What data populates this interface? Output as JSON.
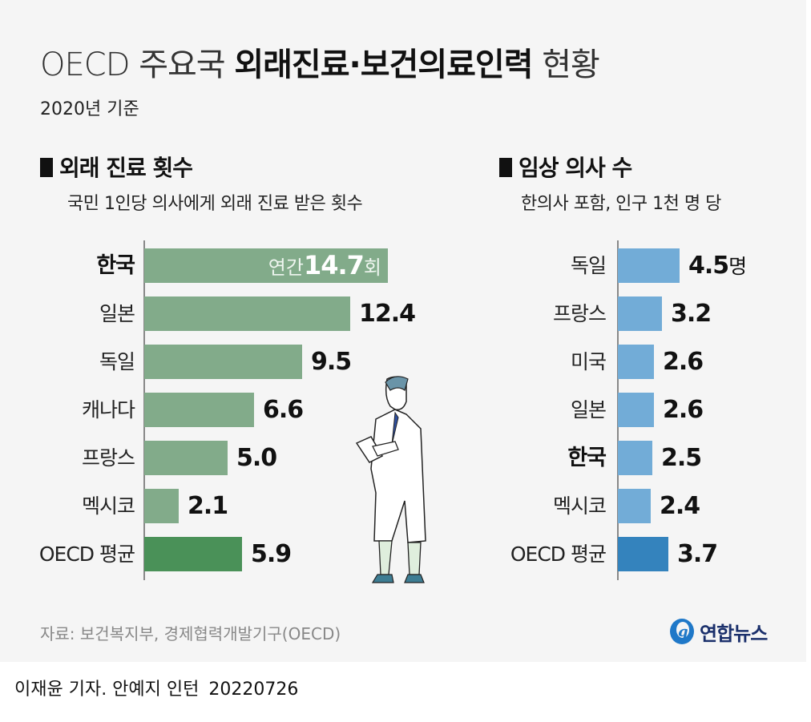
{
  "header": {
    "title_prefix": "OECD 주요국 ",
    "title_bold": "외래진료·보건의료인력",
    "title_suffix": " 현황",
    "subtitle": "2020년 기준"
  },
  "chart_data": [
    {
      "type": "bar",
      "orientation": "horizontal",
      "title": "외래 진료 횟수",
      "subtitle": "국민 1인당 의사에게 외래 진료 받은 횟수",
      "categories": [
        "한국",
        "일본",
        "독일",
        "캐나다",
        "프랑스",
        "멕시코",
        "OECD 평균"
      ],
      "values": [
        14.7,
        12.4,
        9.5,
        6.6,
        5.0,
        2.1,
        5.9
      ],
      "value_labels": [
        "14.7",
        "12.4",
        "9.5",
        "6.6",
        "5.0",
        "2.1",
        "5.9"
      ],
      "first_label_prefix": "연간",
      "first_label_unit": "회",
      "highlight": "한국",
      "bar_color": "#82ab8a",
      "avg_color": "#4a9158"
    },
    {
      "type": "bar",
      "orientation": "horizontal",
      "title": "임상 의사 수",
      "subtitle": "한의사 포함, 인구 1천 명 당",
      "categories": [
        "독일",
        "프랑스",
        "미국",
        "일본",
        "한국",
        "멕시코",
        "OECD 평균"
      ],
      "values": [
        4.5,
        3.2,
        2.6,
        2.6,
        2.5,
        2.4,
        3.7
      ],
      "value_labels": [
        "4.5",
        "3.2",
        "2.6",
        "2.6",
        "2.5",
        "2.4",
        "3.7"
      ],
      "first_label_unit": "명",
      "highlight": "한국",
      "bar_color": "#72acd7",
      "avg_color": "#3483bd"
    }
  ],
  "source": "자료: 보건복지부, 경제협력개발기구(OECD)",
  "logo_text": "연합뉴스",
  "footer": {
    "credit": "이재윤 기자. 안예지 인턴",
    "date": "20220726"
  }
}
